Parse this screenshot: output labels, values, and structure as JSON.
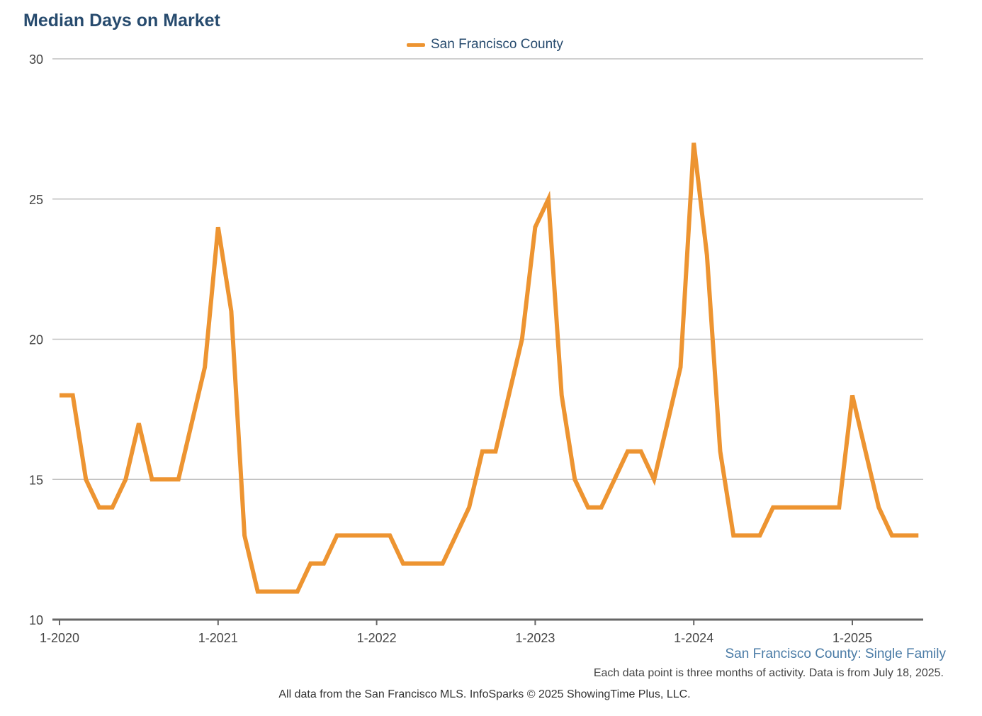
{
  "chart_data": {
    "type": "line",
    "title": "Median Days on Market",
    "ylim": [
      10,
      30
    ],
    "yticks": [
      10,
      15,
      20,
      25,
      30
    ],
    "xticks": [
      {
        "label": "1-2020",
        "index": 0
      },
      {
        "label": "1-2021",
        "index": 12
      },
      {
        "label": "1-2022",
        "index": 24
      },
      {
        "label": "1-2023",
        "index": 36
      },
      {
        "label": "1-2024",
        "index": 48
      },
      {
        "label": "1-2025",
        "index": 60
      }
    ],
    "x_start": "2020-01",
    "x_step": "1 month",
    "grid": true,
    "legend_position": "top-center",
    "series": [
      {
        "name": "San Francisco County",
        "color": "#ed9431",
        "values": [
          18,
          18,
          15,
          14,
          14,
          15,
          17,
          15,
          15,
          15,
          17,
          19,
          24,
          21,
          13,
          11,
          11,
          11,
          11,
          12,
          12,
          13,
          13,
          13,
          13,
          13,
          12,
          12,
          12,
          12,
          13,
          14,
          16,
          16,
          18,
          20,
          24,
          25,
          18,
          15,
          14,
          14,
          15,
          16,
          16,
          15,
          17,
          19,
          27,
          23,
          16,
          13,
          13,
          13,
          14,
          14,
          14,
          14,
          14,
          14,
          18,
          16,
          14,
          13,
          13,
          13
        ]
      }
    ],
    "subtitle": "San Francisco County: Single Family",
    "note": "Each data point is three months of activity. Data is from July 18, 2025.",
    "credit": "All data from the San Francisco MLS. InfoSparks © 2025 ShowingTime Plus, LLC."
  }
}
